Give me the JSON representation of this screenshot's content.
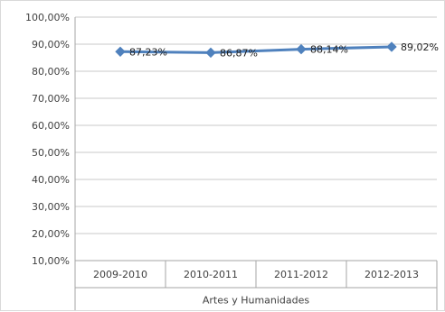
{
  "chart_data": {
    "type": "line",
    "categories": [
      "2009-2010",
      "2010-2011",
      "2011-2012",
      "2012-2013"
    ],
    "group_label": "Artes y Humanidades",
    "series": [
      {
        "values": [
          87.23,
          86.87,
          88.14,
          89.02
        ],
        "labels": [
          "87,23%",
          "86,87%",
          "88,14%",
          "89,02%"
        ],
        "color": "#4f81bd"
      }
    ],
    "ylim": [
      10,
      100
    ],
    "yticks": [
      10,
      20,
      30,
      40,
      50,
      60,
      70,
      80,
      90,
      100
    ],
    "ytick_labels": [
      "10,00%",
      "20,00%",
      "30,00%",
      "40,00%",
      "50,00%",
      "60,00%",
      "70,00%",
      "80,00%",
      "90,00%",
      "100,00%"
    ],
    "grid": true,
    "legend": "none"
  }
}
